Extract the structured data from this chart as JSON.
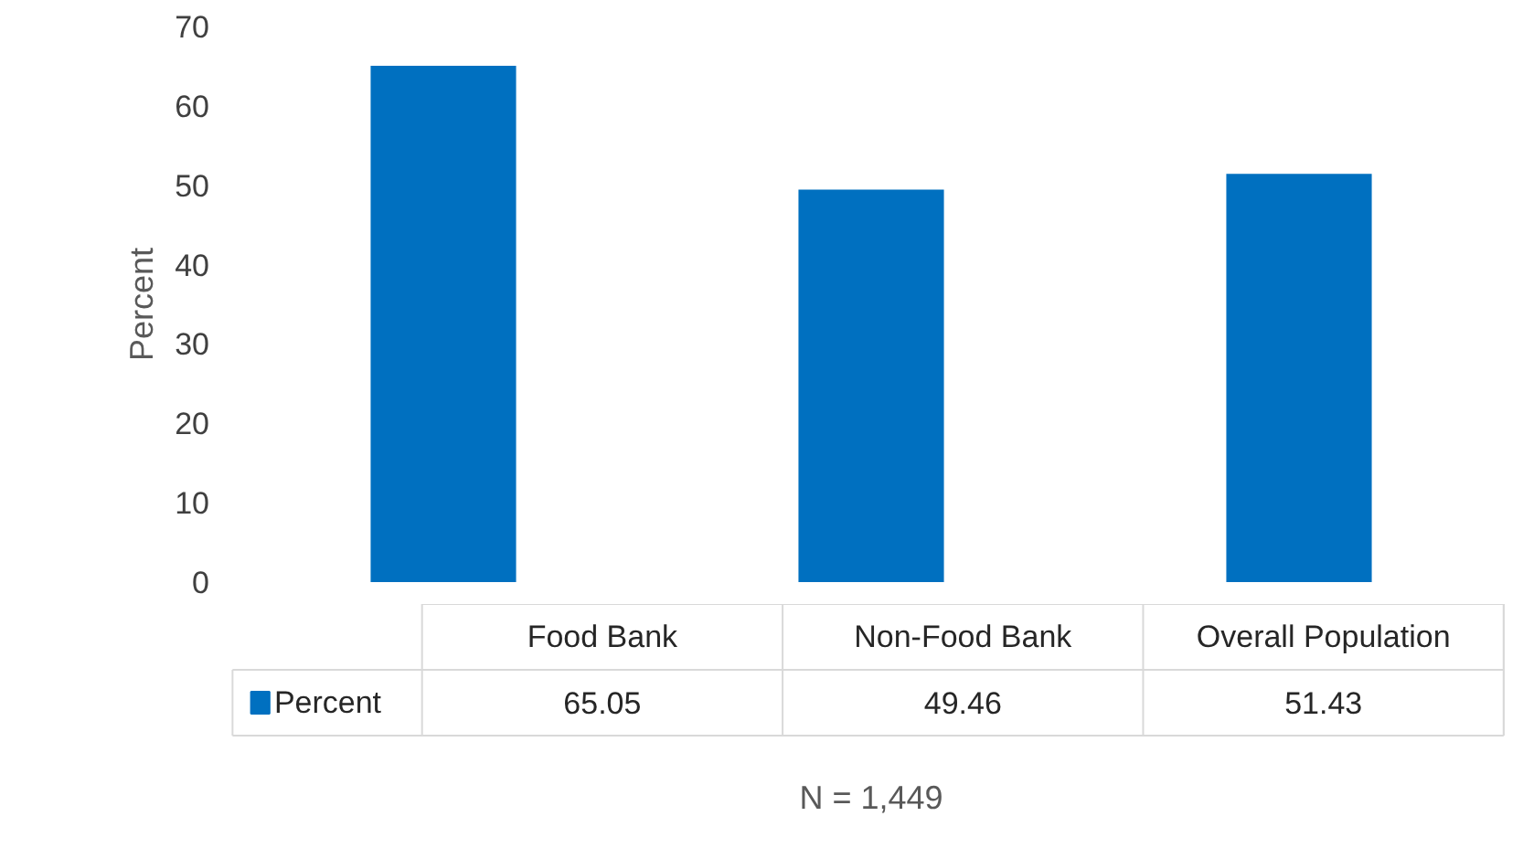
{
  "chart_data": {
    "type": "bar",
    "ylabel": "Percent",
    "categories": [
      "Food Bank",
      "Non-Food Bank",
      "Overall Population"
    ],
    "series": [
      {
        "name": "Percent",
        "color": "#0070c0",
        "values": [
          65.05,
          49.46,
          51.43
        ]
      }
    ],
    "ylim": [
      0,
      70
    ],
    "yticks": [
      0,
      10,
      20,
      30,
      40,
      50,
      60,
      70
    ],
    "grid": false,
    "data_labels": true,
    "annotations": [
      "N = 1,449"
    ]
  }
}
